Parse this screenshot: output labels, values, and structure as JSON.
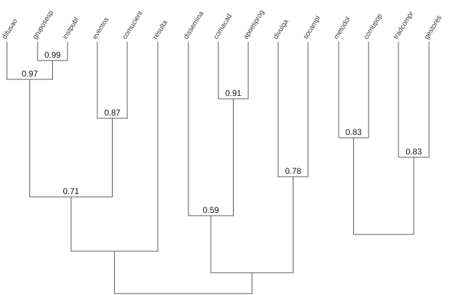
{
  "leaves": [
    "difusao",
    "gruposesp",
    "instpubl",
    "eventos",
    "comucient",
    "resulta",
    "dissemina",
    "comacad",
    "apoesprog",
    "divulga",
    "socampl",
    "metodol",
    "comupop",
    "tradcompr",
    "gestores"
  ],
  "merges": [
    {
      "id": "n_gi",
      "value": "0.99"
    },
    {
      "id": "n_dgi",
      "value": "0.97"
    },
    {
      "id": "n_ec",
      "value": "0.87"
    },
    {
      "id": "n_left",
      "value": "0.71"
    },
    {
      "id": "n_left_r",
      "value": ""
    },
    {
      "id": "n_ca",
      "value": "0.91"
    },
    {
      "id": "n_dca",
      "value": "0.59"
    },
    {
      "id": "n_ds",
      "value": "0.78"
    },
    {
      "id": "n_mid",
      "value": ""
    },
    {
      "id": "n_mc",
      "value": "0.83"
    },
    {
      "id": "n_tg",
      "value": "0.83"
    },
    {
      "id": "n_right",
      "value": ""
    },
    {
      "id": "n_root",
      "value": ""
    }
  ]
}
